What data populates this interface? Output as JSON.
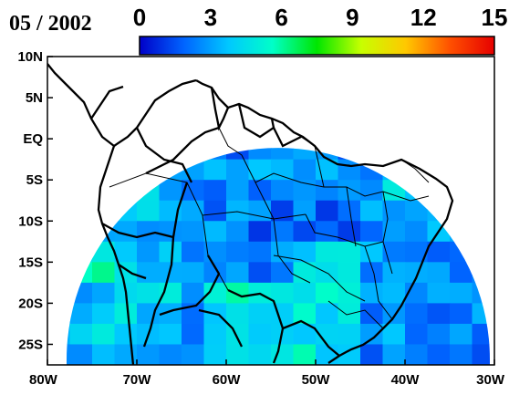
{
  "map": {
    "date_label": "05 / 2002",
    "colorbar": {
      "ticks": [
        "0",
        "3",
        "6",
        "9",
        "12",
        "15"
      ],
      "min": 0,
      "max": 15,
      "colors": [
        "#0000c8",
        "#0064ff",
        "#00c8ff",
        "#00ffc8",
        "#00e600",
        "#c8ff00",
        "#ffc800",
        "#ff5000",
        "#e60000"
      ]
    },
    "axes": {
      "lat_labels": [
        "10N",
        "5N",
        "EQ",
        "5S",
        "10S",
        "15S",
        "20S",
        "25S"
      ],
      "lat_values": [
        10,
        5,
        0,
        -5,
        -10,
        -15,
        -20,
        -25
      ],
      "lon_labels": [
        "80W",
        "70W",
        "60W",
        "50W",
        "40W",
        "30W"
      ],
      "lon_values": [
        -80,
        -70,
        -60,
        -50,
        -40,
        -30
      ],
      "lon_range": [
        -80,
        -30
      ],
      "lat_range": [
        -27.5,
        10
      ]
    },
    "colors": {
      "outside": "#ffffff",
      "land_outline": "#000000"
    }
  }
}
